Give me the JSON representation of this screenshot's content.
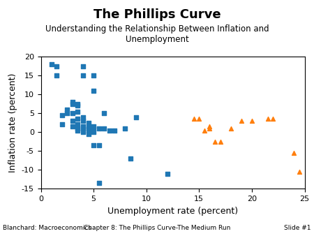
{
  "chart_data": {
    "type": "scatter",
    "title": "The Phillips Curve",
    "subtitle": "Understanding the Relationship Between Inflation and\nUnemployment",
    "annotations": [
      "Blanchard: Macroeconomics",
      "Chapter 8: The Phillips Curve-The Medium Run",
      "Slide #1"
    ],
    "xlabel": "Unemployment rate (percent)",
    "ylabel": "Inflation rate (percent)",
    "xlim": [
      0,
      25
    ],
    "ylim": [
      -15,
      20
    ],
    "xticks": [
      0,
      5,
      10,
      15,
      20,
      25
    ],
    "yticks": [
      -15,
      -10,
      -5,
      0,
      5,
      10,
      15,
      20
    ],
    "grid": false,
    "series": [
      {
        "marker": "square",
        "x": [
          1.0,
          1.5,
          1.5,
          2.0,
          2.0,
          2.5,
          2.5,
          3.0,
          3.0,
          3.0,
          3.0,
          3.0,
          3.5,
          3.5,
          3.5,
          3.5,
          3.5,
          3.5,
          3.5,
          4.0,
          4.0,
          4.0,
          4.0,
          4.0,
          4.0,
          4.0,
          4.5,
          4.5,
          4.5,
          4.5,
          4.5,
          5.0,
          5.0,
          5.0,
          5.0,
          5.0,
          5.0,
          5.5,
          5.5,
          6.0,
          6.0,
          6.5,
          7.0,
          8.0,
          8.5,
          9.0,
          12.0,
          5.5
        ],
        "values": [
          18.0,
          17.5,
          15.0,
          2.0,
          4.5,
          5.0,
          6.0,
          1.5,
          3.0,
          5.0,
          7.5,
          8.0,
          0.5,
          1.0,
          2.0,
          3.5,
          5.5,
          7.0,
          7.5,
          0.0,
          1.0,
          1.5,
          3.0,
          4.0,
          15.0,
          17.5,
          -0.5,
          0.5,
          1.0,
          1.5,
          2.5,
          -3.5,
          0.0,
          1.0,
          1.5,
          11.0,
          15.0,
          -3.5,
          1.0,
          1.0,
          5.0,
          0.5,
          0.5,
          1.0,
          -7.0,
          4.0,
          -11.0,
          -13.5
        ]
      },
      {
        "marker": "triangle",
        "x": [
          14.5,
          15.0,
          16.0,
          16.0,
          16.5,
          17.0,
          18.0,
          19.0,
          20.0,
          21.5,
          22.0,
          24.0,
          24.5,
          15.5
        ],
        "values": [
          3.5,
          3.5,
          1.5,
          1.0,
          -2.5,
          -2.5,
          1.0,
          3.0,
          3.0,
          3.5,
          3.5,
          -5.5,
          -10.5,
          0.5
        ]
      }
    ]
  }
}
